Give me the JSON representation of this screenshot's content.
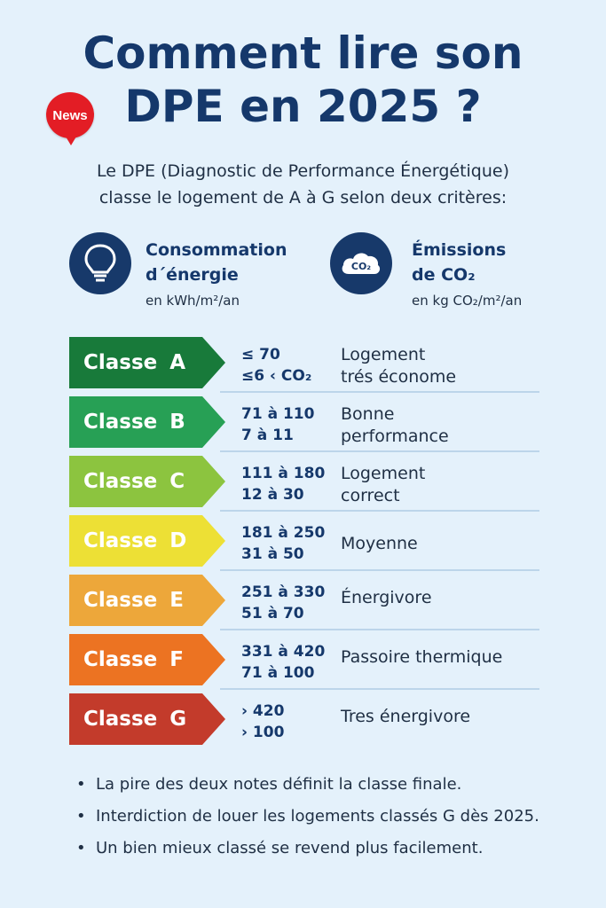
{
  "title": {
    "line1": "Comment lire son",
    "line2": "DPE en 2025 ?"
  },
  "badge": "News",
  "intro": {
    "line1": "Le DPE (Diagnostic de Performance Énergétique)",
    "line2": "classe le logement de A à G selon deux critères:"
  },
  "criteria": {
    "energy": {
      "title_line1": "Consommation",
      "title_line2": "d´énergie",
      "unit": "en kWh/m²/an",
      "icon": "lightbulb-icon"
    },
    "co2": {
      "title_line1": "Émissions",
      "title_line2": "de CO₂",
      "unit": "en kg CO₂/m²/an",
      "icon": "co2-cloud-icon",
      "icon_text": "CO₂"
    }
  },
  "classes": [
    {
      "label": "Classe  A",
      "energy": "≤ 70",
      "co2": "≤6 ‹ CO₂",
      "desc_line1": "Logement",
      "desc_line2": "trés économe",
      "color": "#187a3a"
    },
    {
      "label": "Classe  B",
      "energy": "71 à 110",
      "co2": "7 à 11",
      "desc_line1": "Bonne",
      "desc_line2": "performance",
      "color": "#27a055"
    },
    {
      "label": "Classe  C",
      "energy": "111 à 180",
      "co2": "12 à 30",
      "desc_line1": "Logement",
      "desc_line2": "correct",
      "color": "#8cc43f"
    },
    {
      "label": "Classe  D",
      "energy": "181 à 250",
      "co2": "31 à 50",
      "desc_line1": "Moyenne",
      "desc_line2": "",
      "color": "#ede035"
    },
    {
      "label": "Classe  E",
      "energy": "251 à 330",
      "co2": "51 à 70",
      "desc_line1": "Énergivore",
      "desc_line2": "",
      "color": "#eda73a"
    },
    {
      "label": "Classe  F",
      "energy": "331 à 420",
      "co2": "71 à 100",
      "desc_line1": "Passoire thermique",
      "desc_line2": "",
      "color": "#ec7322"
    },
    {
      "label": "Classe  G",
      "energy": "› 420",
      "co2": "› 100",
      "desc_line1": "Tres énergivore",
      "desc_line2": "",
      "color": "#c33b2b"
    }
  ],
  "bullets": [
    "La pire des deux notes définit la classe finale.",
    "Interdiction de louer les logements classés G dès 2025.",
    "Un bien mieux classé se revend plus facilement."
  ],
  "colors": {
    "background": "#e4f1fb",
    "title": "#15386b",
    "icon_circle": "#17396a",
    "badge": "#e31d25"
  }
}
